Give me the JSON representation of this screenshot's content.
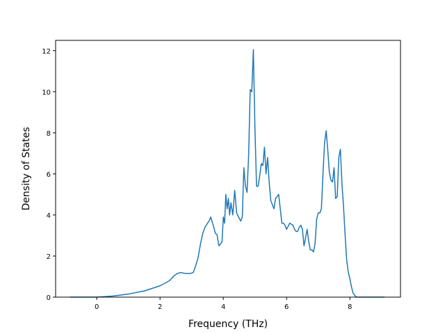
{
  "chart_data": {
    "type": "line",
    "title": "",
    "xlabel": "Frequency (THz)",
    "ylabel": "Density of States",
    "xlim": [
      -1.3,
      9.6
    ],
    "ylim": [
      0,
      12.5
    ],
    "xticks": [
      0,
      2,
      4,
      6,
      8
    ],
    "yticks": [
      0,
      2,
      4,
      6,
      8,
      10,
      12
    ],
    "grid": false,
    "series": [
      {
        "color": "#1f77b4",
        "x": [
          -0.85,
          0.0,
          0.5,
          1.0,
          1.5,
          2.0,
          2.3,
          2.45,
          2.55,
          2.65,
          2.8,
          2.95,
          3.05,
          3.12,
          3.2,
          3.28,
          3.35,
          3.42,
          3.5,
          3.55,
          3.6,
          3.68,
          3.75,
          3.8,
          3.86,
          3.92,
          3.96,
          4.0,
          4.04,
          4.08,
          4.12,
          4.16,
          4.2,
          4.24,
          4.3,
          4.36,
          4.42,
          4.48,
          4.55,
          4.6,
          4.65,
          4.7,
          4.75,
          4.8,
          4.85,
          4.9,
          4.95,
          5.0,
          5.05,
          5.1,
          5.15,
          5.2,
          5.25,
          5.3,
          5.35,
          5.4,
          5.45,
          5.5,
          5.55,
          5.6,
          5.65,
          5.7,
          5.75,
          5.8,
          5.85,
          5.9,
          5.95,
          6.0,
          6.1,
          6.2,
          6.25,
          6.3,
          6.35,
          6.4,
          6.45,
          6.5,
          6.55,
          6.6,
          6.65,
          6.7,
          6.75,
          6.8,
          6.85,
          6.9,
          6.95,
          7.0,
          7.05,
          7.1,
          7.15,
          7.2,
          7.25,
          7.3,
          7.35,
          7.4,
          7.45,
          7.5,
          7.55,
          7.6,
          7.65,
          7.7,
          7.75,
          7.8,
          7.85,
          7.9,
          7.95,
          8.0,
          8.05,
          8.1,
          8.2,
          8.3,
          8.5,
          9.1
        ],
        "y": [
          0.0,
          0.0,
          0.05,
          0.15,
          0.3,
          0.55,
          0.8,
          1.05,
          1.15,
          1.2,
          1.15,
          1.15,
          1.2,
          1.5,
          1.9,
          2.6,
          3.1,
          3.4,
          3.6,
          3.7,
          3.9,
          3.5,
          3.1,
          3.05,
          2.5,
          2.6,
          2.7,
          3.9,
          3.6,
          5.0,
          4.3,
          4.8,
          4.0,
          4.6,
          4.0,
          5.2,
          4.1,
          3.9,
          3.7,
          3.9,
          6.3,
          5.4,
          5.1,
          6.9,
          10.1,
          10.0,
          12.05,
          8.2,
          5.4,
          5.4,
          5.9,
          6.5,
          6.4,
          7.3,
          6.0,
          6.8,
          5.6,
          4.7,
          4.5,
          4.3,
          4.8,
          4.9,
          5.0,
          4.3,
          3.6,
          3.6,
          3.5,
          3.3,
          3.6,
          3.5,
          3.3,
          3.2,
          3.2,
          3.4,
          3.5,
          3.3,
          2.5,
          2.9,
          3.3,
          2.7,
          2.3,
          2.3,
          2.2,
          2.6,
          3.8,
          4.1,
          4.1,
          4.3,
          6.0,
          7.5,
          8.1,
          7.2,
          6.1,
          5.7,
          5.6,
          6.3,
          4.8,
          4.9,
          6.8,
          7.2,
          5.5,
          4.4,
          3.0,
          1.8,
          1.2,
          0.9,
          0.5,
          0.2,
          0.0,
          0.0,
          0.0,
          0.0
        ]
      }
    ]
  }
}
